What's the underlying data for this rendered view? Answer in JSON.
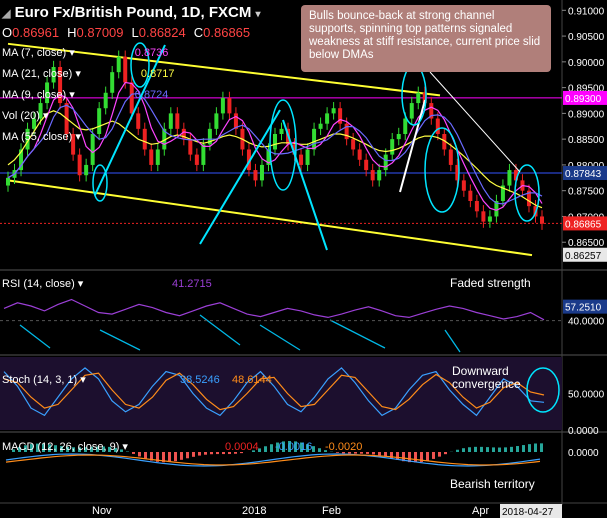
{
  "header": {
    "title": "Euro Fx/British Pound, 1D, FXCM",
    "ohlc": [
      {
        "k": "O",
        "v": "0.86961"
      },
      {
        "k": "H",
        "v": "0.87009"
      },
      {
        "k": "L",
        "v": "0.86824"
      },
      {
        "k": "C",
        "v": "0.86865"
      }
    ]
  },
  "indicators": [
    {
      "label": "MA (7, close)",
      "value": "0.8736",
      "color": "#ff44ff"
    },
    {
      "label": "MA (21, close)",
      "value": "0.8717",
      "color": "#ffff44"
    },
    {
      "label": "MA (9, close)",
      "value": "0.8724",
      "color": "#6a6aff"
    },
    {
      "label": "Vol (20)",
      "value": "",
      "color": "#ffffff"
    },
    {
      "label": "MA (55, close)",
      "value": "",
      "color": "#ffffff"
    }
  ],
  "callout": {
    "text": "Bulls bounce-back at strong channel supports, spinning top patterns signaled weakness at stiff resistance, current price slid below DMAs"
  },
  "annotations": {
    "rsi_note": "Faded strength",
    "stoch_note_1": "Downward",
    "stoch_note_2": "convergence",
    "macd_note": "Bearish territory"
  },
  "price_axis": {
    "ticks": [
      "0.91000",
      "0.90500",
      "0.90000",
      "0.89500",
      "0.89000",
      "0.88500",
      "0.88000",
      "0.87500",
      "0.87000",
      "0.86500"
    ],
    "badges": [
      {
        "label": "0.89300",
        "color": "#ff00ff"
      },
      {
        "label": "0.87843",
        "color": "#1a3a8a"
      },
      {
        "label": "0.86865",
        "color": "#ee2222"
      },
      {
        "label": "0.86257",
        "color": "#e8e8e8"
      }
    ]
  },
  "rsi_panel": {
    "label": "RSI (14, close)",
    "value": "41.2715",
    "color": "#9b3fd6",
    "axis": [
      "40.0000"
    ],
    "badge": "57.2510"
  },
  "stoch_panel": {
    "label": "Stoch (14, 3, 1)",
    "k_value": "38.5246",
    "d_value": "48.6144",
    "k_color": "#3aa0ff",
    "d_color": "#ff8c1a",
    "axis": [
      "50.0000",
      "0.0000"
    ]
  },
  "macd_panel": {
    "label": "MACD (12, 26, close, 9)",
    "values": [
      "0.0004",
      "-0.0016",
      "-0.0020"
    ],
    "axis": [
      "0.0000"
    ]
  },
  "time_axis": {
    "labels": [
      "Nov",
      "2018",
      "Feb",
      "Apr"
    ],
    "current": "2018-04-27"
  },
  "chart_data": {
    "type": "line",
    "title": "Euro Fx/British Pound, 1D, FXCM",
    "series": [
      {
        "name": "Close",
        "color": "#33dd33",
        "values": [
          0.8775,
          0.879,
          0.883,
          0.887,
          0.889,
          0.892,
          0.896,
          0.899,
          0.892,
          0.886,
          0.882,
          0.878,
          0.88,
          0.886,
          0.891,
          0.894,
          0.898,
          0.901,
          0.896,
          0.89,
          0.887,
          0.883,
          0.88,
          0.883,
          0.887,
          0.89,
          0.887,
          0.885,
          0.882,
          0.88,
          0.884,
          0.887,
          0.89,
          0.893,
          0.89,
          0.887,
          0.883,
          0.879,
          0.877,
          0.88,
          0.883,
          0.886,
          0.887,
          0.884,
          0.882,
          0.88,
          0.883,
          0.887,
          0.888,
          0.89,
          0.891,
          0.888,
          0.885,
          0.883,
          0.881,
          0.879,
          0.877,
          0.879,
          0.882,
          0.885,
          0.886,
          0.889,
          0.892,
          0.894,
          0.892,
          0.889,
          0.886,
          0.883,
          0.88,
          0.877,
          0.875,
          0.873,
          0.871,
          0.869,
          0.87,
          0.873,
          0.876,
          0.879,
          0.877,
          0.875,
          0.872,
          0.87,
          0.8686
        ]
      },
      {
        "name": "MA (21, close)",
        "color": "#ffff44",
        "values": [
          0.88,
          0.881,
          0.8825,
          0.8845,
          0.8865,
          0.8885,
          0.89,
          0.8905,
          0.89,
          0.889,
          0.888,
          0.887,
          0.8868,
          0.887,
          0.8875,
          0.888,
          0.8885,
          0.888,
          0.887,
          0.886,
          0.885,
          0.8845,
          0.884,
          0.8842,
          0.8848,
          0.8855,
          0.8858,
          0.8855,
          0.885,
          0.8845,
          0.8842,
          0.8845,
          0.885,
          0.8855,
          0.8858,
          0.8855,
          0.885,
          0.8843,
          0.8838,
          0.8835,
          0.8836,
          0.884,
          0.8843,
          0.8843,
          0.8842,
          0.884,
          0.884,
          0.8845,
          0.885,
          0.8855,
          0.886,
          0.886,
          0.8857,
          0.8852,
          0.8846,
          0.884,
          0.8833,
          0.8828,
          0.8826,
          0.8828,
          0.8832,
          0.8838,
          0.8845,
          0.8852,
          0.8856,
          0.8856,
          0.8853,
          0.8847,
          0.8838,
          0.8828,
          0.8817,
          0.8805,
          0.8793,
          0.878,
          0.8768,
          0.876,
          0.8755,
          0.875,
          0.8745,
          0.8738,
          0.873,
          0.8722,
          0.8717
        ]
      }
    ],
    "ylim": [
      0.86,
      0.912
    ],
    "channel": {
      "upper": [
        0.9035,
        0.8935
      ],
      "lower": [
        0.877,
        0.8625
      ]
    },
    "panels": [
      "price",
      "rsi",
      "stoch",
      "macd"
    ]
  }
}
